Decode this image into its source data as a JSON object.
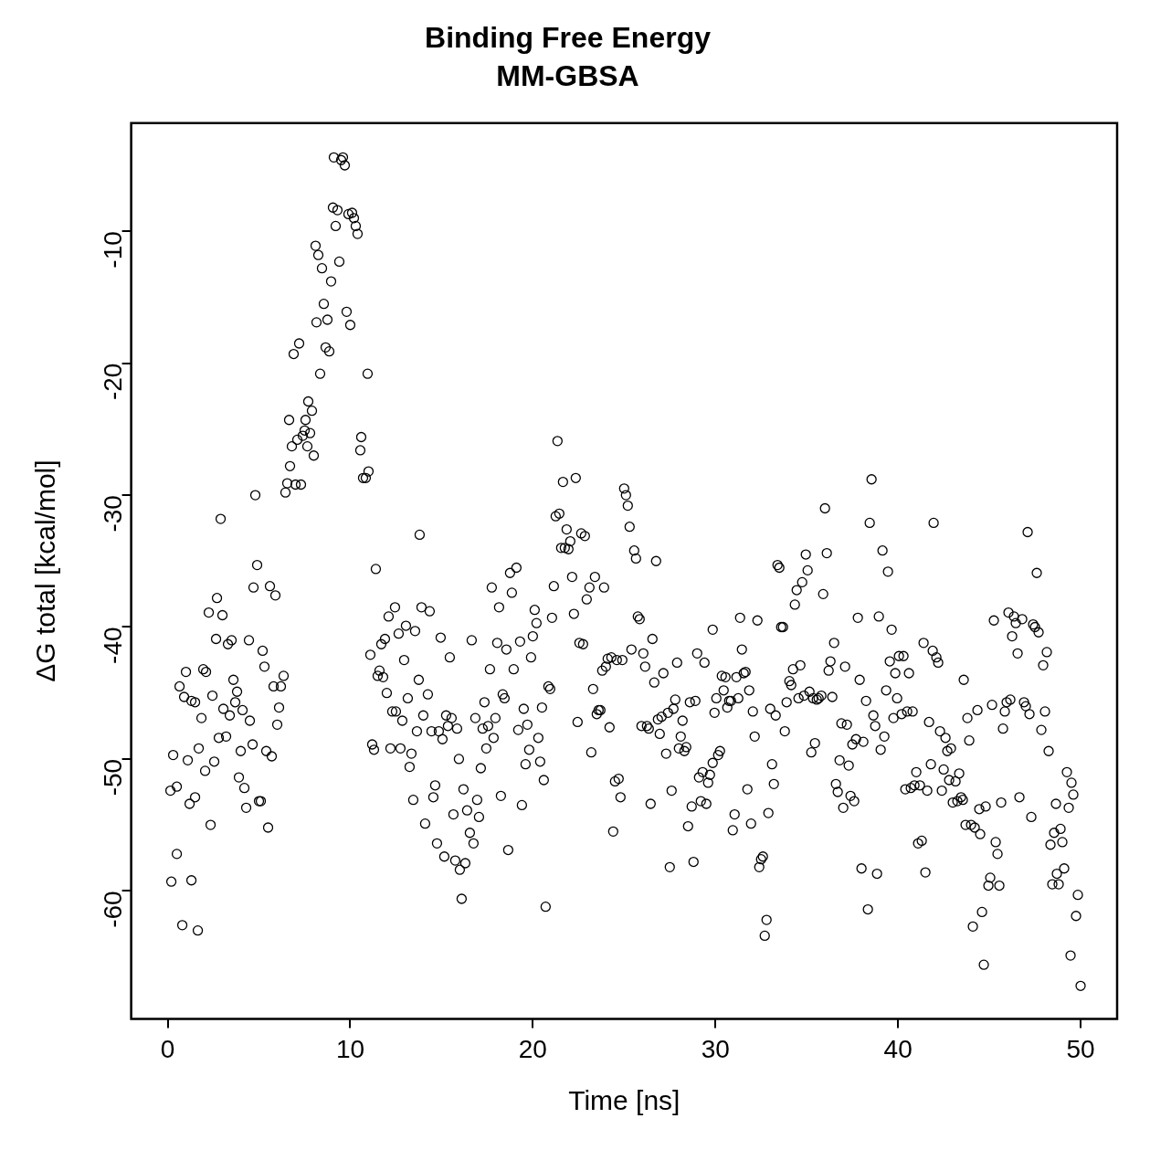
{
  "chart_data": {
    "type": "scatter",
    "title": "Binding Free Energy",
    "subtitle": "MM-GBSA",
    "xlabel": "Time [ns]",
    "ylabel": "ΔG total [kcal/mol]",
    "marker": "circle",
    "xlim": [
      -2,
      52
    ],
    "xticks": [
      0,
      10,
      20,
      30,
      40,
      50
    ],
    "ylim": [
      -69.7,
      -1.8
    ],
    "yticks": [
      -60,
      -50,
      -40,
      -30,
      -20,
      -10
    ],
    "series": [
      {
        "color": "#000000",
        "x": [
          0.15,
          0.2,
          0.3,
          0.5,
          0.5,
          0.65,
          0.8,
          0.9,
          1.0,
          1.1,
          1.2,
          1.3,
          1.3,
          1.5,
          1.5,
          1.65,
          1.7,
          1.85,
          1.95,
          2.05,
          2.1,
          2.25,
          2.35,
          2.45,
          2.55,
          2.65,
          2.7,
          2.8,
          2.9,
          3.0,
          3.05,
          3.2,
          3.3,
          3.4,
          3.5,
          3.6,
          3.7,
          3.8,
          3.9,
          4.0,
          4.1,
          4.2,
          4.3,
          4.45,
          4.5,
          4.65,
          4.7,
          4.8,
          4.9,
          5.0,
          5.1,
          5.2,
          5.3,
          5.4,
          5.5,
          5.6,
          5.7,
          5.8,
          5.9,
          6.0,
          6.1,
          6.2,
          6.35,
          6.45,
          6.55,
          6.65,
          6.7,
          6.8,
          6.9,
          7.0,
          7.1,
          7.2,
          7.3,
          7.4,
          7.5,
          7.55,
          7.65,
          7.7,
          7.8,
          7.9,
          8.0,
          8.1,
          8.15,
          8.25,
          8.35,
          8.45,
          8.55,
          8.65,
          8.75,
          8.85,
          8.95,
          9.05,
          9.1,
          9.2,
          9.3,
          9.4,
          9.5,
          9.6,
          9.7,
          9.8,
          9.9,
          10.0,
          10.1,
          10.2,
          10.3,
          10.4,
          10.55,
          10.6,
          10.7,
          10.85,
          10.95,
          11.0,
          11.1,
          11.2,
          11.3,
          11.4,
          11.5,
          11.6,
          11.7,
          11.8,
          11.9,
          12.0,
          12.1,
          12.2,
          12.3,
          12.45,
          12.5,
          12.65,
          12.75,
          12.85,
          12.95,
          13.05,
          13.15,
          13.25,
          13.35,
          13.45,
          13.55,
          13.65,
          13.75,
          13.8,
          13.9,
          14.0,
          14.1,
          14.25,
          14.35,
          14.45,
          14.55,
          14.65,
          14.75,
          14.85,
          14.95,
          15.05,
          15.15,
          15.25,
          15.35,
          15.45,
          15.55,
          15.65,
          15.75,
          15.85,
          15.95,
          16.0,
          16.1,
          16.2,
          16.3,
          16.4,
          16.55,
          16.65,
          16.75,
          16.85,
          16.95,
          17.05,
          17.15,
          17.25,
          17.35,
          17.45,
          17.55,
          17.65,
          17.75,
          17.85,
          17.95,
          18.05,
          18.15,
          18.25,
          18.35,
          18.45,
          18.55,
          18.65,
          18.75,
          18.85,
          18.95,
          19.1,
          19.2,
          19.3,
          19.4,
          19.5,
          19.6,
          19.7,
          19.8,
          19.9,
          20.0,
          20.1,
          20.2,
          20.3,
          20.4,
          20.5,
          20.6,
          20.7,
          20.85,
          20.95,
          21.05,
          21.15,
          21.25,
          21.35,
          21.45,
          21.55,
          21.65,
          21.75,
          21.85,
          21.95,
          22.05,
          22.15,
          22.25,
          22.35,
          22.45,
          22.55,
          22.65,
          22.75,
          22.85,
          22.95,
          23.1,
          23.2,
          23.3,
          23.4,
          23.5,
          23.6,
          23.7,
          23.8,
          23.9,
          24.0,
          24.1,
          24.2,
          24.3,
          24.4,
          24.5,
          24.6,
          24.7,
          24.8,
          24.9,
          25.0,
          25.1,
          25.2,
          25.3,
          25.4,
          25.55,
          25.65,
          25.75,
          25.85,
          25.95,
          26.05,
          26.15,
          26.25,
          26.35,
          26.45,
          26.55,
          26.65,
          26.75,
          26.85,
          26.95,
          27.05,
          27.15,
          27.3,
          27.4,
          27.5,
          27.6,
          27.7,
          27.8,
          27.9,
          28.0,
          28.1,
          28.2,
          28.3,
          28.4,
          28.5,
          28.6,
          28.7,
          28.8,
          28.9,
          29.0,
          29.1,
          29.2,
          29.3,
          29.4,
          29.5,
          29.6,
          29.7,
          29.85,
          29.95,
          29.85,
          30.05,
          30.15,
          30.25,
          30.35,
          30.45,
          30.55,
          30.65,
          30.75,
          30.85,
          30.95,
          31.05,
          31.15,
          31.25,
          31.35,
          31.45,
          31.55,
          31.65,
          31.75,
          31.85,
          31.95,
          32.05,
          32.15,
          32.3,
          32.4,
          32.5,
          32.6,
          32.7,
          32.8,
          32.9,
          33.0,
          33.1,
          33.2,
          33.3,
          33.4,
          33.5,
          33.6,
          33.7,
          33.8,
          33.9,
          34.05,
          34.15,
          34.25,
          34.35,
          34.45,
          34.55,
          34.65,
          34.75,
          34.85,
          34.95,
          35.05,
          35.15,
          35.25,
          35.35,
          35.45,
          35.55,
          35.65,
          35.8,
          35.9,
          36.0,
          36.1,
          36.2,
          36.3,
          36.4,
          36.5,
          36.6,
          36.7,
          36.8,
          36.9,
          37.0,
          37.1,
          37.2,
          37.3,
          37.4,
          37.5,
          37.6,
          37.7,
          37.8,
          37.9,
          38.0,
          38.1,
          38.25,
          38.35,
          38.45,
          38.55,
          38.65,
          38.75,
          38.85,
          38.95,
          39.05,
          39.15,
          39.25,
          39.35,
          39.45,
          39.55,
          39.65,
          39.75,
          39.85,
          39.95,
          40.05,
          40.2,
          40.3,
          40.4,
          40.5,
          40.6,
          40.7,
          40.8,
          40.9,
          41.0,
          41.1,
          41.2,
          41.3,
          41.4,
          41.5,
          41.6,
          41.7,
          41.8,
          41.9,
          41.95,
          42.1,
          42.2,
          42.3,
          42.4,
          42.5,
          42.6,
          42.7,
          42.8,
          42.9,
          43.0,
          43.15,
          43.25,
          43.35,
          43.45,
          43.55,
          43.6,
          43.7,
          43.8,
          43.9,
          44.0,
          44.1,
          44.2,
          44.35,
          44.45,
          44.5,
          44.6,
          44.7,
          44.8,
          44.95,
          45.05,
          45.15,
          45.25,
          45.35,
          45.45,
          45.55,
          45.65,
          45.75,
          45.85,
          45.95,
          46.05,
          46.15,
          46.25,
          46.35,
          46.45,
          46.55,
          46.65,
          46.8,
          46.9,
          47.0,
          47.1,
          47.2,
          47.3,
          47.4,
          47.5,
          47.6,
          47.7,
          47.85,
          47.95,
          48.05,
          48.15,
          48.25,
          48.35,
          48.45,
          48.55,
          48.65,
          48.7,
          48.8,
          48.9,
          49.0,
          49.1,
          49.25,
          49.35,
          49.45,
          49.5,
          49.6,
          49.75,
          49.85,
          50.0
        ],
        "values": [
          -52.4,
          -59.3,
          -49.7,
          -57.2,
          -52.1,
          -44.5,
          -62.6,
          -45.3,
          -43.4,
          -50.1,
          -53.4,
          -45.6,
          -59.2,
          -45.7,
          -52.9,
          -63.0,
          -49.2,
          -46.9,
          -43.2,
          -50.9,
          -43.4,
          -38.9,
          -55.0,
          -45.2,
          -50.2,
          -40.9,
          -37.8,
          -48.4,
          -31.8,
          -39.1,
          -46.2,
          -48.3,
          -41.3,
          -46.7,
          -41.0,
          -44.0,
          -45.7,
          -44.9,
          -51.4,
          -49.4,
          -46.3,
          -52.2,
          -53.7,
          -41.0,
          -47.1,
          -48.9,
          -37.0,
          -30.0,
          -35.3,
          -53.2,
          -53.2,
          -41.8,
          -43.0,
          -49.4,
          -55.2,
          -36.9,
          -49.8,
          -44.5,
          -37.6,
          -47.4,
          -46.1,
          -44.5,
          -43.7,
          -29.8,
          -29.1,
          -24.3,
          -27.8,
          -26.3,
          -19.3,
          -29.2,
          -25.8,
          -18.5,
          -29.2,
          -25.5,
          -25.1,
          -24.3,
          -26.3,
          -22.9,
          -25.3,
          -23.6,
          -27.0,
          -11.1,
          -16.9,
          -11.8,
          -20.8,
          -12.8,
          -15.5,
          -18.8,
          -16.7,
          -19.1,
          -13.8,
          -8.2,
          -4.4,
          -9.6,
          -8.4,
          -12.3,
          -4.6,
          -4.4,
          -5.0,
          -16.1,
          -8.7,
          -17.1,
          -8.6,
          -9.0,
          -9.6,
          -10.2,
          -26.6,
          -25.6,
          -28.7,
          -28.7,
          -20.8,
          -28.2,
          -42.1,
          -48.9,
          -49.3,
          -35.6,
          -43.7,
          -43.3,
          -41.3,
          -43.8,
          -40.9,
          -45.0,
          -39.2,
          -49.2,
          -46.4,
          -38.5,
          -46.4,
          -40.5,
          -49.2,
          -47.1,
          -42.5,
          -39.9,
          -45.4,
          -50.6,
          -49.6,
          -53.1,
          -40.3,
          -47.9,
          -44.0,
          -33.0,
          -38.5,
          -46.7,
          -54.9,
          -45.1,
          -38.8,
          -47.9,
          -52.9,
          -52.0,
          -56.4,
          -47.9,
          -40.8,
          -48.5,
          -57.4,
          -46.7,
          -47.5,
          -42.3,
          -46.9,
          -54.2,
          -57.7,
          -47.7,
          -50.0,
          -58.4,
          -60.6,
          -52.3,
          -57.9,
          -53.9,
          -55.6,
          -41.0,
          -56.4,
          -46.9,
          -53.1,
          -54.4,
          -50.7,
          -47.7,
          -45.7,
          -49.2,
          -47.5,
          -43.2,
          -37.0,
          -48.4,
          -46.9,
          -41.2,
          -38.5,
          -52.8,
          -45.1,
          -45.4,
          -41.7,
          -56.9,
          -35.9,
          -37.4,
          -43.2,
          -35.5,
          -47.8,
          -41.1,
          -53.5,
          -46.2,
          -50.4,
          -47.4,
          -49.3,
          -42.3,
          -40.7,
          -38.7,
          -39.7,
          -48.4,
          -50.2,
          -46.1,
          -51.6,
          -61.2,
          -44.5,
          -44.7,
          -39.3,
          -36.9,
          -31.6,
          -25.9,
          -31.4,
          -34.0,
          -29.0,
          -34.0,
          -32.6,
          -34.1,
          -33.5,
          -36.2,
          -39.0,
          -28.7,
          -47.2,
          -41.2,
          -32.9,
          -41.3,
          -33.1,
          -37.9,
          -37.0,
          -49.5,
          -44.7,
          -36.2,
          -46.6,
          -46.3,
          -46.3,
          -43.3,
          -37.0,
          -43.0,
          -42.4,
          -47.6,
          -42.3,
          -55.5,
          -51.7,
          -42.5,
          -51.5,
          -52.9,
          -42.5,
          -29.5,
          -30.0,
          -30.8,
          -32.4,
          -41.7,
          -34.2,
          -34.8,
          -39.2,
          -39.4,
          -47.5,
          -42.0,
          -43.0,
          -47.5,
          -47.7,
          -53.4,
          -40.9,
          -44.2,
          -35.0,
          -47.0,
          -48.1,
          -46.8,
          -43.5,
          -49.6,
          -46.5,
          -58.2,
          -52.4,
          -46.2,
          -45.5,
          -42.7,
          -49.2,
          -48.3,
          -47.1,
          -49.4,
          -49.1,
          -55.1,
          -45.7,
          -53.6,
          -57.8,
          -45.6,
          -42.0,
          -51.4,
          -53.2,
          -51.0,
          -42.7,
          -53.4,
          -51.8,
          -51.2,
          -50.3,
          -46.5,
          -40.2,
          -45.4,
          -49.7,
          -49.4,
          -43.7,
          -44.8,
          -43.8,
          -46.1,
          -45.6,
          -45.6,
          -55.4,
          -54.2,
          -43.8,
          -45.4,
          -39.3,
          -41.7,
          -43.5,
          -43.4,
          -52.3,
          -44.8,
          -54.9,
          -46.4,
          -48.3,
          -39.5,
          -58.2,
          -57.6,
          -57.4,
          -63.4,
          -62.2,
          -54.1,
          -46.2,
          -50.4,
          -51.9,
          -46.7,
          -35.3,
          -35.5,
          -40.0,
          -40.0,
          -47.9,
          -45.7,
          -44.1,
          -44.4,
          -43.2,
          -38.3,
          -37.2,
          -45.4,
          -42.9,
          -36.6,
          -45.2,
          -34.5,
          -35.7,
          -44.9,
          -49.5,
          -45.4,
          -48.8,
          -45.5,
          -45.4,
          -45.2,
          -37.5,
          -31.0,
          -34.4,
          -43.3,
          -42.6,
          -45.3,
          -41.2,
          -51.9,
          -52.5,
          -50.1,
          -47.3,
          -53.7,
          -43.0,
          -47.4,
          -50.5,
          -52.8,
          -48.9,
          -53.2,
          -48.5,
          -39.3,
          -44.0,
          -58.3,
          -48.7,
          -45.6,
          -61.4,
          -32.1,
          -28.8,
          -46.7,
          -47.5,
          -58.7,
          -39.2,
          -49.3,
          -34.2,
          -48.3,
          -44.8,
          -35.8,
          -42.6,
          -40.2,
          -46.9,
          -43.5,
          -45.4,
          -42.2,
          -46.6,
          -42.2,
          -52.3,
          -46.4,
          -43.5,
          -52.2,
          -46.4,
          -52.0,
          -51.0,
          -56.4,
          -52.0,
          -56.2,
          -41.2,
          -58.6,
          -52.4,
          -47.2,
          -50.4,
          -41.8,
          -32.1,
          -42.3,
          -42.7,
          -47.9,
          -52.4,
          -50.8,
          -48.4,
          -49.4,
          -51.6,
          -49.2,
          -53.3,
          -51.7,
          -53.2,
          -51.1,
          -52.9,
          -53.1,
          -44.0,
          -55.0,
          -46.9,
          -48.6,
          -55.0,
          -62.7,
          -55.2,
          -46.3,
          -53.8,
          -55.7,
          -61.6,
          -65.6,
          -53.6,
          -59.6,
          -59.0,
          -45.9,
          -39.5,
          -56.3,
          -57.2,
          -59.6,
          -53.3,
          -47.7,
          -46.4,
          -45.7,
          -38.9,
          -45.5,
          -40.7,
          -39.2,
          -39.7,
          -42.0,
          -52.9,
          -39.4,
          -45.7,
          -46.0,
          -32.8,
          -46.6,
          -54.4,
          -39.8,
          -40.0,
          -35.9,
          -40.4,
          -47.8,
          -42.9,
          -46.4,
          -41.9,
          -49.4,
          -56.5,
          -59.5,
          -55.6,
          -53.4,
          -58.7,
          -59.5,
          -55.3,
          -56.3,
          -58.3,
          -51.0,
          -53.7,
          -64.9,
          -51.8,
          -52.7,
          -61.9,
          -60.3,
          -67.2
        ]
      }
    ]
  }
}
